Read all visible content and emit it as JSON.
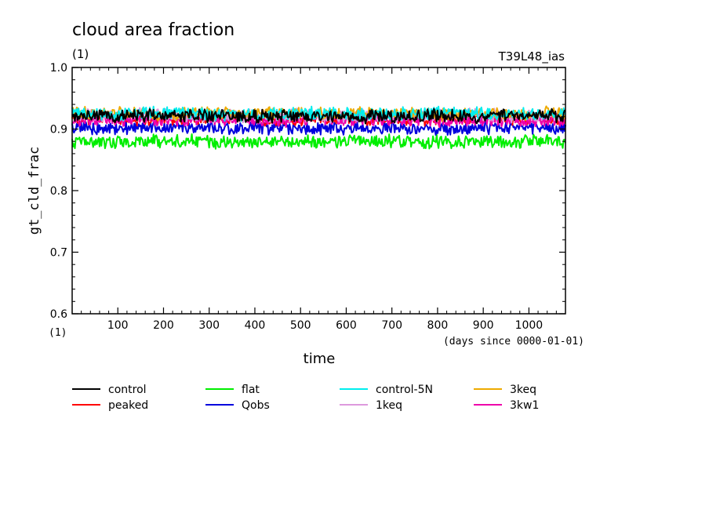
{
  "chart_data": {
    "type": "line",
    "title": "cloud area fraction",
    "units_left": "(1)",
    "experiment_label": "T39L48_ias",
    "xlabel": "time",
    "xunits": "(days since 0000-01-01)",
    "xunit_left": "(1)",
    "ylabel": "gt_cld_frac",
    "xlim": [
      0,
      1080
    ],
    "ylim": [
      0.6,
      1.0
    ],
    "x_ticks": [
      100,
      200,
      300,
      400,
      500,
      600,
      700,
      800,
      900,
      1000
    ],
    "x_tick_labels": [
      "100",
      "200",
      "300",
      "400",
      "500",
      "600",
      "700",
      "800",
      "900",
      "1000"
    ],
    "y_ticks": [
      0.6,
      0.7,
      0.8,
      0.9,
      1.0
    ],
    "y_tick_labels": [
      "0.6",
      "0.7",
      "0.8",
      "0.9",
      "1.0"
    ],
    "x": [
      0,
      90,
      180,
      270,
      360,
      450,
      540,
      630,
      720,
      810,
      900,
      990,
      1080
    ],
    "legend_placement": "bottom",
    "series": [
      {
        "name": "control",
        "color": "#000000",
        "values": [
          0.92,
          0.922,
          0.921,
          0.923,
          0.92,
          0.921,
          0.922,
          0.92,
          0.921,
          0.922,
          0.921,
          0.924,
          0.922
        ]
      },
      {
        "name": "peaked",
        "color": "#ff0000",
        "values": [
          0.917,
          0.918,
          0.916,
          0.917,
          0.918,
          0.916,
          0.917,
          0.918,
          0.916,
          0.917,
          0.918,
          0.917,
          0.916
        ]
      },
      {
        "name": "flat",
        "color": "#00ee00",
        "values": [
          0.88,
          0.879,
          0.881,
          0.88,
          0.878,
          0.88,
          0.879,
          0.881,
          0.88,
          0.879,
          0.88,
          0.881,
          0.879
        ]
      },
      {
        "name": "Qobs",
        "color": "#0000dd",
        "values": [
          0.902,
          0.901,
          0.903,
          0.902,
          0.9,
          0.902,
          0.901,
          0.903,
          0.902,
          0.9,
          0.902,
          0.903,
          0.901
        ]
      },
      {
        "name": "control-5N",
        "color": "#00eeee",
        "values": [
          0.925,
          0.924,
          0.926,
          0.925,
          0.924,
          0.925,
          0.926,
          0.924,
          0.925,
          0.926,
          0.925,
          0.924,
          0.925
        ]
      },
      {
        "name": "1keq",
        "color": "#dd99dd",
        "values": [
          0.922,
          0.921,
          0.924,
          0.922,
          0.921,
          0.923,
          0.922,
          0.921,
          0.922,
          0.924,
          0.922,
          0.921,
          0.922
        ]
      },
      {
        "name": "3keq",
        "color": "#eeaa00",
        "values": [
          0.925,
          0.926,
          0.924,
          0.925,
          0.926,
          0.925,
          0.924,
          0.926,
          0.925,
          0.924,
          0.926,
          0.925,
          0.926
        ]
      },
      {
        "name": "3kw1",
        "color": "#ee00aa",
        "values": [
          0.915,
          0.916,
          0.914,
          0.915,
          0.916,
          0.914,
          0.915,
          0.916,
          0.915,
          0.914,
          0.916,
          0.915,
          0.914
        ]
      }
    ]
  }
}
